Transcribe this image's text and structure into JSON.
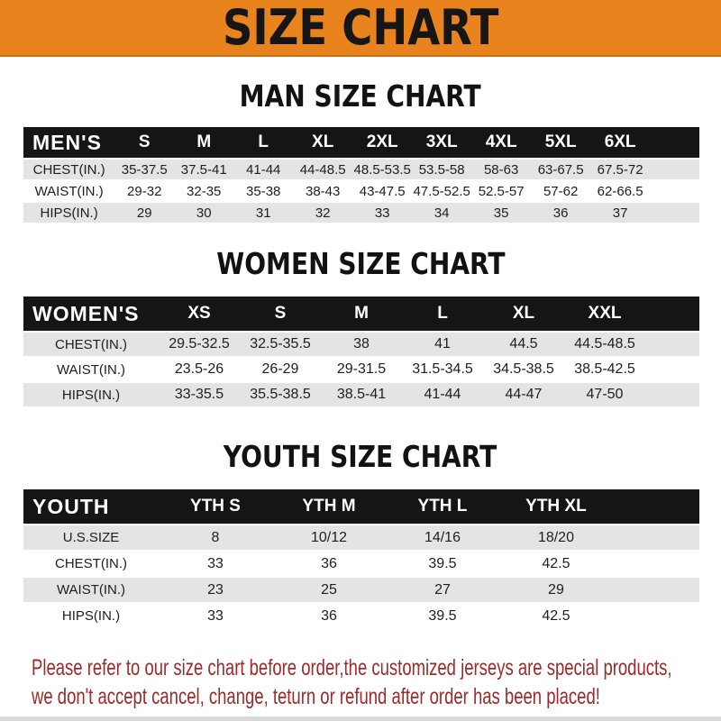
{
  "banner": {
    "title": "SIZE CHART"
  },
  "sections": [
    {
      "heading": "MAN SIZE CHART",
      "header_label": "MEN'S",
      "columns": [
        "S",
        "M",
        "L",
        "XL",
        "2XL",
        "3XL",
        "4XL",
        "5XL",
        "6XL"
      ],
      "rows": [
        {
          "label": "CHEST(IN.)",
          "values": [
            "35-37.5",
            "37.5-41",
            "41-44",
            "44-48.5",
            "48.5-53.5",
            "53.5-58",
            "58-63",
            "63-67.5",
            "67.5-72"
          ]
        },
        {
          "label": "WAIST(IN.)",
          "values": [
            "29-32",
            "32-35",
            "35-38",
            "38-43",
            "43-47.5",
            "47.5-52.5",
            "52.5-57",
            "57-62",
            "62-66.5"
          ]
        },
        {
          "label": "HIPS(IN.)",
          "values": [
            "29",
            "30",
            "31",
            "32",
            "33",
            "34",
            "35",
            "36",
            "37"
          ]
        }
      ]
    },
    {
      "heading": "WOMEN SIZE CHART",
      "header_label": "WOMEN'S",
      "columns": [
        "XS",
        "S",
        "M",
        "L",
        "XL",
        "XXL"
      ],
      "rows": [
        {
          "label": "CHEST(IN.)",
          "values": [
            "29.5-32.5",
            "32.5-35.5",
            "38",
            "41",
            "44.5",
            "44.5-48.5"
          ]
        },
        {
          "label": "WAIST(IN.)",
          "values": [
            "23.5-26",
            "26-29",
            "29-31.5",
            "31.5-34.5",
            "34.5-38.5",
            "38.5-42.5"
          ]
        },
        {
          "label": "HIPS(IN.)",
          "values": [
            "33-35.5",
            "35.5-38.5",
            "38.5-41",
            "41-44",
            "44-47",
            "47-50"
          ]
        }
      ]
    },
    {
      "heading": "YOUTH SIZE CHART",
      "header_label": "YOUTH",
      "columns": [
        "YTH S",
        "YTH M",
        "YTH L",
        "YTH XL"
      ],
      "rows": [
        {
          "label": "U.S.SIZE",
          "values": [
            "8",
            "10/12",
            "14/16",
            "18/20"
          ]
        },
        {
          "label": "CHEST(IN.)",
          "values": [
            "33",
            "36",
            "39.5",
            "42.5"
          ]
        },
        {
          "label": "WAIST(IN.)",
          "values": [
            "23",
            "25",
            "27",
            "29"
          ]
        },
        {
          "label": "HIPS(IN.)",
          "values": [
            "33",
            "36",
            "39.5",
            "42.5"
          ]
        }
      ]
    }
  ],
  "footer": {
    "line1": "Please refer to our size chart before order,the customized jerseys are special products,",
    "line2": "we don't accept cancel, change, teturn or refund after order has been placed!"
  },
  "colors": {
    "banner_bg": "#E8831D",
    "table_header_bg": "#151515",
    "row_stripe": "#E4E4E4",
    "footer_text": "#9B2A2A"
  }
}
